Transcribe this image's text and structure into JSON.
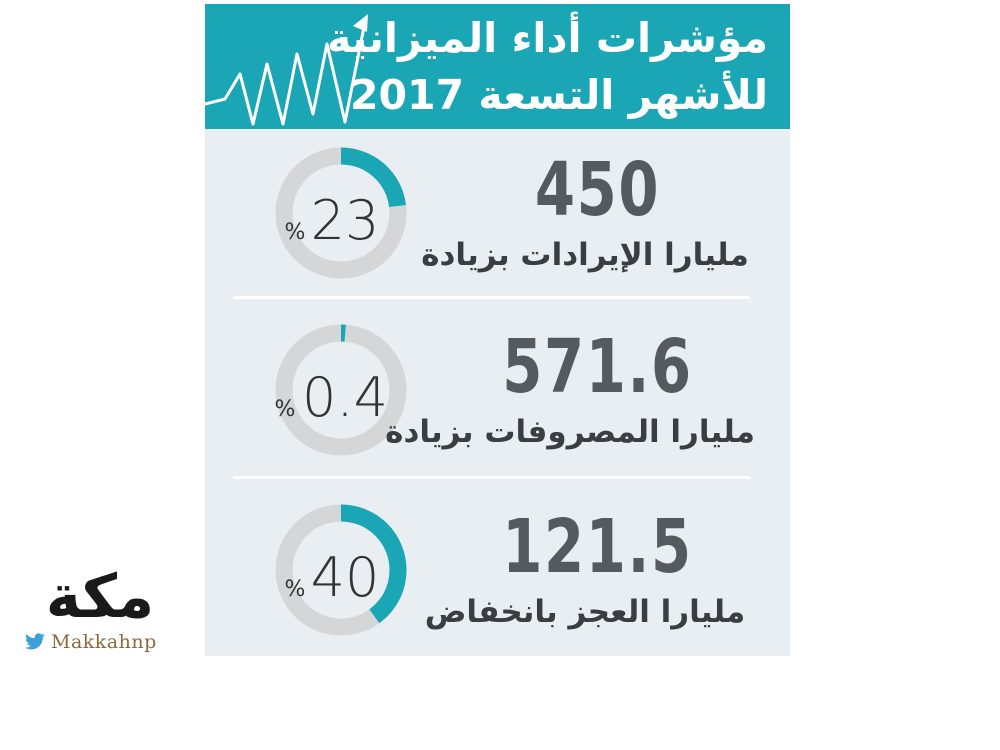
{
  "header": {
    "title_line1": "مؤشرات أداء الميزانية",
    "title_line2": "للأشهر التسعة 2017"
  },
  "colors": {
    "accent": "#1aa6b5",
    "panel": "#e8eef1",
    "ring_track": "#d4d6d8",
    "value_text": "#555a60"
  },
  "chart_data": {
    "type": "donut",
    "unit": "%",
    "items": [
      {
        "value": "450",
        "label": "مليارا الإيرادات بزيادة",
        "percent": 23,
        "percent_text": "23",
        "percent_sign": "%"
      },
      {
        "value": "571.6",
        "label": "مليارا المصروفات بزيادة",
        "percent": 0.4,
        "percent_text": "0.4",
        "percent_sign": "%"
      },
      {
        "value": "121.5",
        "label": "مليارا العجز بانخفاض",
        "percent": 40,
        "percent_text": "40",
        "percent_sign": "%"
      }
    ]
  },
  "brand": {
    "logo_text": "مكة",
    "handle": "Makkahnp",
    "icon": "twitter-bird-icon"
  }
}
